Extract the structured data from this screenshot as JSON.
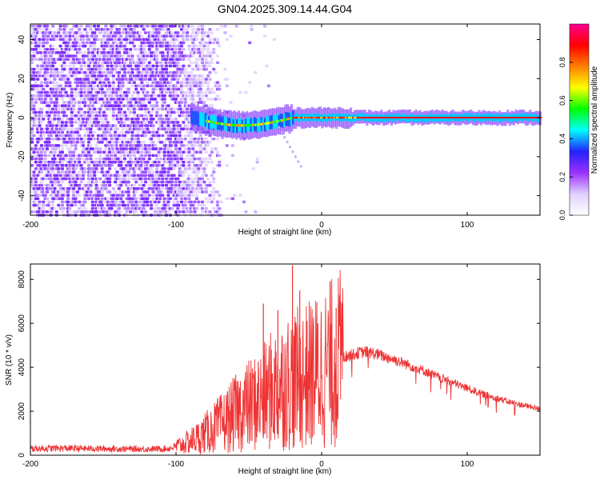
{
  "figure": {
    "title": "GN04.2025.309.14.44.G04"
  },
  "chart_data": [
    {
      "type": "heatmap",
      "title": "GN04.2025.309.14.44.G04",
      "xlabel": "Height of straight line (km)",
      "ylabel": "Frequency (Hz)",
      "xlim": [
        -200,
        150
      ],
      "ylim": [
        -50,
        48
      ],
      "xticks": [
        -200,
        -100,
        0,
        100
      ],
      "yticks": [
        -40,
        -20,
        0,
        20,
        40
      ],
      "colorbar": {
        "label": "Normalized spectral amplitude",
        "range": [
          0,
          1
        ],
        "ticks": [
          "0.0",
          "0.2",
          "0.4",
          "0.6",
          "0.8"
        ],
        "colors": [
          "#ffffff",
          "#e0d0ff",
          "#9b30ff",
          "#2222ff",
          "#00ffff",
          "#00ff00",
          "#ffff00",
          "#ff8000",
          "#ff0000",
          "#ff0090"
        ]
      },
      "features": {
        "noise_region_km": [
          -200,
          -70
        ],
        "ridge_start_km": -90,
        "ridge_frequency_hz": 0,
        "ridge_dip_frequency_hz": -4,
        "descending_streak_km": [
          -30,
          -15
        ],
        "descending_streak_hz": [
          -5,
          -25
        ]
      }
    },
    {
      "type": "line",
      "xlabel": "Height of straight line (km)",
      "ylabel": "SNR (10 * v/v)",
      "xlim": [
        -200,
        150
      ],
      "ylim": [
        0,
        8700
      ],
      "xticks": [
        -200,
        -100,
        0,
        100
      ],
      "yticks": [
        0,
        2000,
        4000,
        6000,
        8000
      ],
      "series": [
        {
          "name": "SNR",
          "color": "#ee3333",
          "x": [
            -200,
            -180,
            -160,
            -140,
            -120,
            -105,
            -95,
            -85,
            -75,
            -65,
            -55,
            -45,
            -40,
            -35,
            -30,
            -25,
            -20,
            -15,
            -10,
            -5,
            0,
            5,
            10,
            15,
            20,
            25,
            30,
            35,
            40,
            50,
            60,
            70,
            80,
            90,
            100,
            110,
            120,
            130,
            140,
            150
          ],
          "y": [
            300,
            320,
            300,
            290,
            280,
            300,
            500,
            800,
            1200,
            1600,
            2100,
            2400,
            2600,
            2900,
            3100,
            3300,
            3400,
            3500,
            3600,
            3750,
            3900,
            4100,
            4300,
            4450,
            4550,
            4650,
            4700,
            4650,
            4550,
            4350,
            4100,
            3850,
            3550,
            3300,
            3050,
            2800,
            2600,
            2400,
            2250,
            2100
          ],
          "spikes": [
            {
              "x": -40,
              "y": 6900
            },
            {
              "x": -30,
              "y": 6600
            },
            {
              "x": -20,
              "y": 8650
            },
            {
              "x": -15,
              "y": 7500
            },
            {
              "x": -10,
              "y": 6100
            },
            {
              "x": 10,
              "y": 6700
            }
          ]
        }
      ]
    }
  ]
}
